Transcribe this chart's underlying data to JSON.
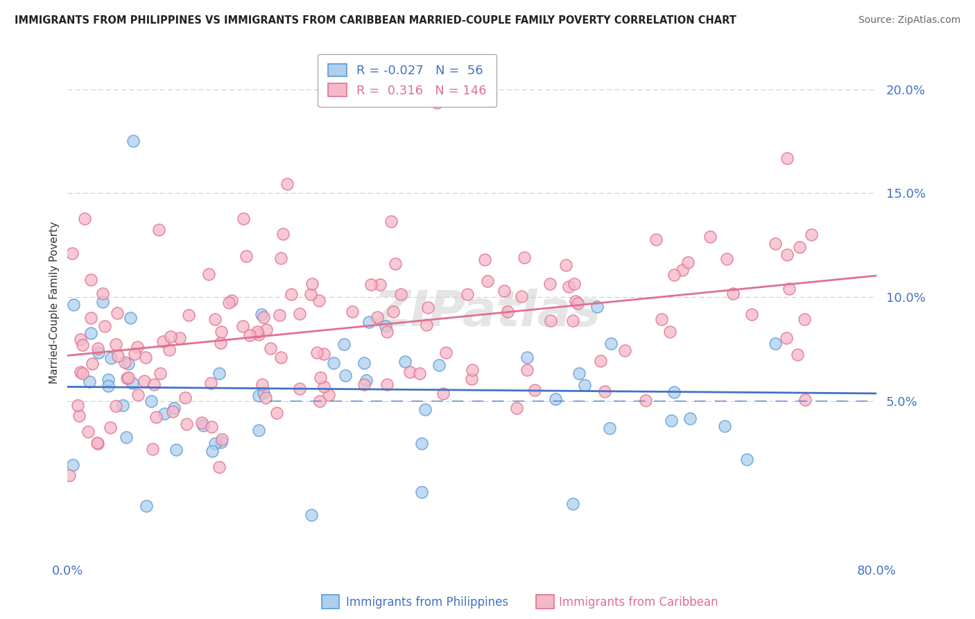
{
  "title": "IMMIGRANTS FROM PHILIPPINES VS IMMIGRANTS FROM CARIBBEAN MARRIED-COUPLE FAMILY POVERTY CORRELATION CHART",
  "source": "Source: ZipAtlas.com",
  "ylabel": "Married-Couple Family Poverty",
  "xlim": [
    0.0,
    0.8
  ],
  "ylim": [
    -0.025,
    0.22
  ],
  "philippines_R": -0.027,
  "philippines_N": 56,
  "caribbean_R": 0.316,
  "caribbean_N": 146,
  "philippines_color": "#aecfee",
  "caribbean_color": "#f5b8c8",
  "philippines_edge_color": "#5b9bd5",
  "caribbean_edge_color": "#e07090",
  "philippines_line_color": "#4472c4",
  "caribbean_line_color": "#e07090",
  "watermark": "ZIPatlas",
  "legend_label_1": "Immigrants from Philippines",
  "legend_label_2": "Immigrants from Caribbean",
  "ytick_vals": [
    0.05,
    0.1,
    0.15,
    0.2
  ],
  "ytick_labels": [
    "5.0%",
    "10.0%",
    "15.0%",
    "20.0%"
  ],
  "xtick_vals": [
    0.0,
    0.8
  ],
  "xtick_labels": [
    "0.0%",
    "80.0%"
  ]
}
